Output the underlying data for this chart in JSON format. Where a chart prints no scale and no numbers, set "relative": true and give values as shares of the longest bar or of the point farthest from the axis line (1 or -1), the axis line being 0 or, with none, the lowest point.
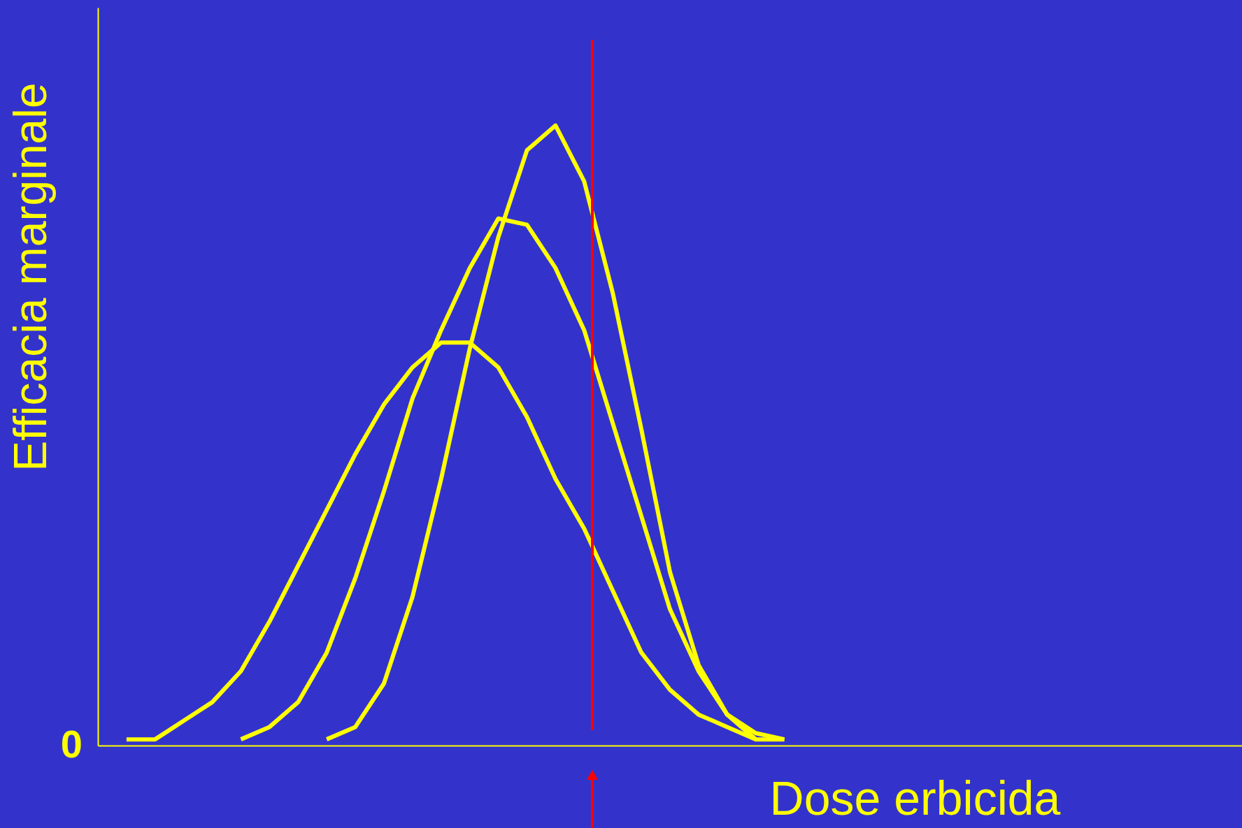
{
  "chart_data": {
    "type": "line",
    "relative": true,
    "xlabel": "Dose erbicida",
    "ylabel": "Efficacia marginale",
    "categories": [
      null,
      null,
      null,
      null,
      null,
      null,
      null,
      null,
      null,
      null,
      null,
      null,
      null,
      null,
      null,
      null,
      null,
      null,
      null,
      null,
      null,
      null,
      null,
      null,
      null,
      null,
      null,
      null,
      null,
      null,
      null,
      null,
      null,
      null,
      null,
      null,
      null,
      null,
      null
    ],
    "series": [
      {
        "color": "#ffff00",
        "values": [
          0.01,
          0.01,
          0.04,
          0.07,
          0.12,
          0.2,
          0.29,
          0.38,
          0.47,
          0.55,
          0.61,
          0.65,
          0.65,
          0.61,
          0.53,
          0.43,
          0.35,
          0.25,
          0.15,
          0.09,
          0.05,
          0.03,
          0.01,
          0.01,
          null,
          null,
          null,
          null,
          null,
          null,
          null,
          null,
          null,
          null,
          null,
          null,
          null,
          null,
          null
        ]
      },
      {
        "color": "#ffff00",
        "values": [
          null,
          null,
          null,
          null,
          0.01,
          0.03,
          0.07,
          0.15,
          0.27,
          0.41,
          0.56,
          0.67,
          0.77,
          0.85,
          0.84,
          0.77,
          0.67,
          0.52,
          0.37,
          0.22,
          0.12,
          0.05,
          0.02,
          0.01,
          null,
          null,
          null,
          null,
          null,
          null,
          null,
          null,
          null,
          null,
          null,
          null,
          null,
          null,
          null
        ]
      },
      {
        "color": "#ffff00",
        "values": [
          null,
          null,
          null,
          null,
          null,
          null,
          null,
          0.01,
          0.03,
          0.1,
          0.24,
          0.43,
          0.64,
          0.82,
          0.96,
          1.0,
          0.91,
          0.73,
          0.51,
          0.28,
          0.13,
          0.05,
          0.01,
          null,
          null,
          null,
          null,
          null,
          null,
          null,
          null,
          null,
          null,
          null,
          null,
          null,
          null,
          null,
          null
        ]
      }
    ],
    "annotations": [
      "0"
    ]
  }
}
